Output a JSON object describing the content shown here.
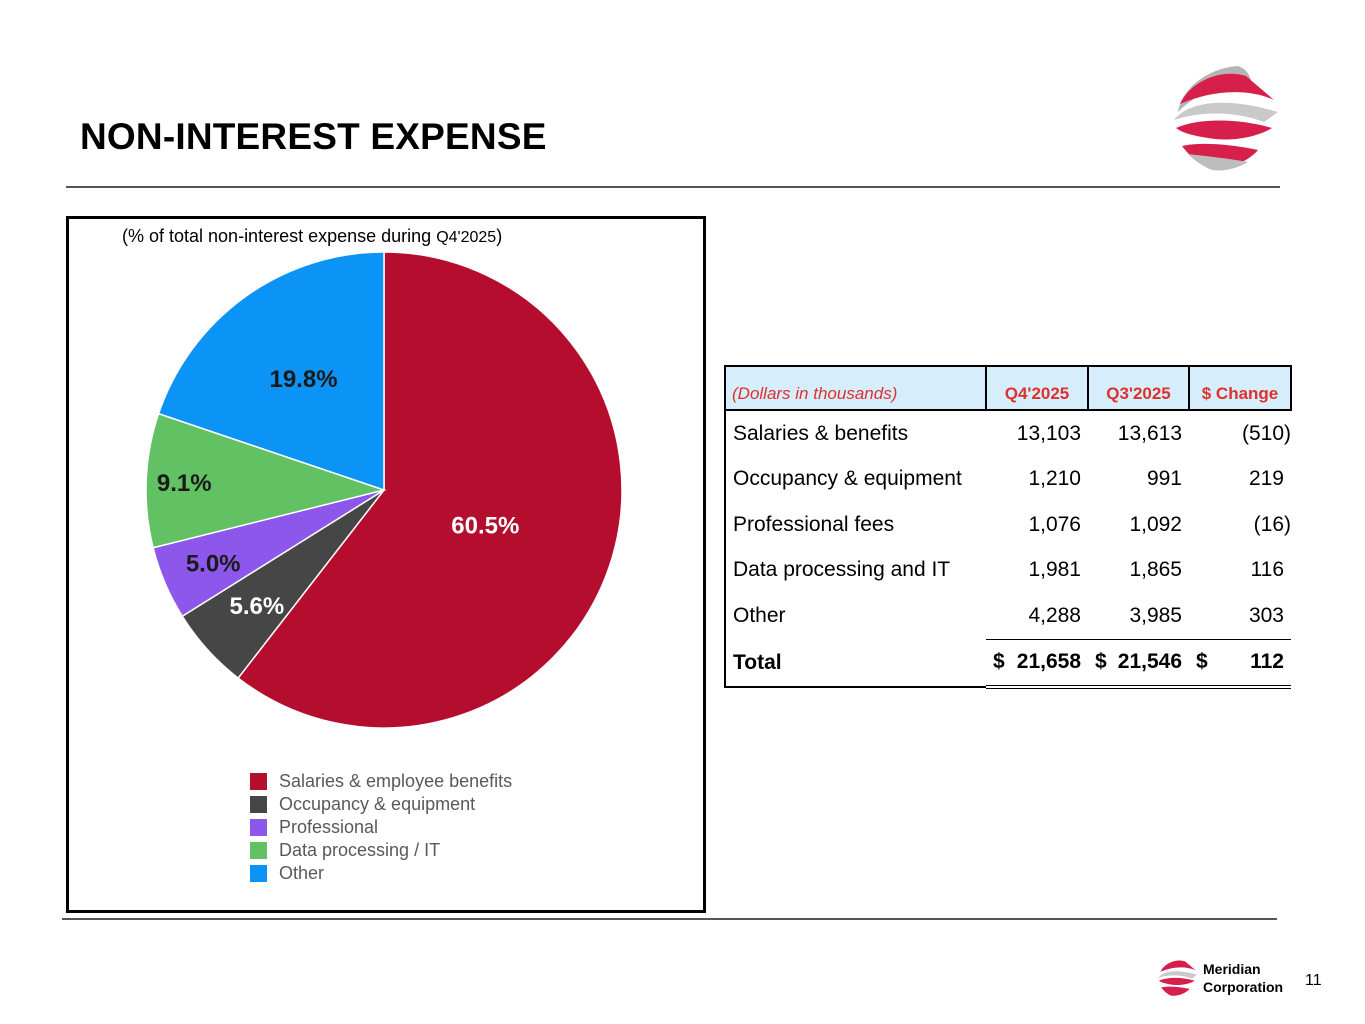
{
  "page": {
    "title": "NON-INTEREST EXPENSE",
    "page_number": "11",
    "company_line1": "Meridian",
    "company_line2": "Corporation"
  },
  "colors": {
    "salaries": "#b40d2d",
    "occupancy": "#464646",
    "professional": "#8d57eb",
    "data_processing": "#62c162",
    "other": "#0b93f6",
    "header_bg": "#d6eefb",
    "header_text": "#e0302e"
  },
  "chart_data": {
    "type": "pie",
    "title": "(% of total non-interest expense during",
    "title_period": "Q4'2025",
    "title_close": ")",
    "categories": [
      "Salaries & employee benefits",
      "Occupancy & equipment",
      "Professional",
      "Data processing / IT",
      "Other"
    ],
    "values": [
      60.5,
      5.6,
      5.0,
      9.1,
      19.8
    ],
    "labels": [
      "60.5%",
      "5.6%",
      "5.0%",
      "9.1%",
      "19.8%"
    ],
    "legend_position": "bottom"
  },
  "table": {
    "header": [
      "(Dollars in thousands)",
      "Q4'2025",
      "Q3'2025",
      "$ Change"
    ],
    "rows": [
      {
        "label": "Salaries & benefits",
        "q4": "13,103",
        "q3": "13,613",
        "chg": "(510)"
      },
      {
        "label": "Occupancy & equipment",
        "q4": "1,210",
        "q3": "991",
        "chg": "219"
      },
      {
        "label": "Professional fees",
        "q4": "1,076",
        "q3": "1,092",
        "chg": "(16)"
      },
      {
        "label": "Data processing and IT",
        "q4": "1,981",
        "q3": "1,865",
        "chg": "116"
      },
      {
        "label": "Other",
        "q4": "4,288",
        "q3": "3,985",
        "chg": "303"
      }
    ],
    "total": {
      "label": "Total",
      "q4_cur": "$",
      "q4": "21,658",
      "q3_cur": "$",
      "q3": "21,546",
      "chg_cur": "$",
      "chg": "112"
    }
  }
}
